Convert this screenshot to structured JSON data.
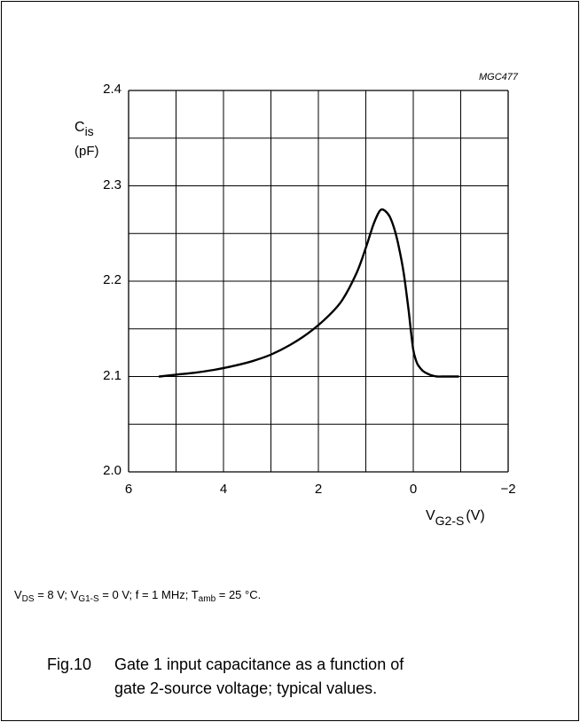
{
  "chart_data": {
    "type": "line",
    "code": "MGC477",
    "ylabel": "C",
    "ylabel_sub": "is",
    "yunit": "(pF)",
    "xlabel": "V",
    "xlabel_sub": "G2-S",
    "xunit": "(V)",
    "xlim": [
      6,
      -2
    ],
    "ylim": [
      2.0,
      2.4
    ],
    "x_ticks": [
      "6",
      "4",
      "2",
      "0",
      "−2"
    ],
    "y_ticks": [
      "2.4",
      "2.3",
      "2.2",
      "2.1",
      "2.0"
    ],
    "grid": true,
    "series": [
      {
        "x": [
          5.35,
          5.0,
          4.6,
          4.2,
          3.8,
          3.4,
          3.0,
          2.6,
          2.2,
          1.8,
          1.5,
          1.2,
          1.0,
          0.85,
          0.75,
          0.68,
          0.6,
          0.5,
          0.4,
          0.3,
          0.2,
          0.1,
          0.05,
          0.0,
          -0.05,
          -0.1,
          -0.2,
          -0.3,
          -0.4,
          -0.5,
          -0.6,
          -0.7,
          -0.8,
          -0.95
        ],
        "y": [
          2.1,
          2.102,
          2.104,
          2.107,
          2.111,
          2.116,
          2.123,
          2.133,
          2.146,
          2.163,
          2.18,
          2.208,
          2.235,
          2.258,
          2.27,
          2.275,
          2.274,
          2.268,
          2.255,
          2.235,
          2.208,
          2.17,
          2.148,
          2.128,
          2.118,
          2.112,
          2.106,
          2.103,
          2.101,
          2.1,
          2.1,
          2.1,
          2.1,
          2.1
        ]
      }
    ]
  },
  "conditions": {
    "vds_sub": "DS",
    "vds_val": " = 8 V; ",
    "vg1_sub": "G1-S",
    "vg1_val": " = 0 V; f = 1 MHz; ",
    "tamb_sub": "amb",
    "tamb_val": " = 25 °C."
  },
  "caption": {
    "number": "Fig.10",
    "line1": "Gate 1 input capacitance as a function of",
    "line2": "gate 2-source voltage; typical values."
  }
}
